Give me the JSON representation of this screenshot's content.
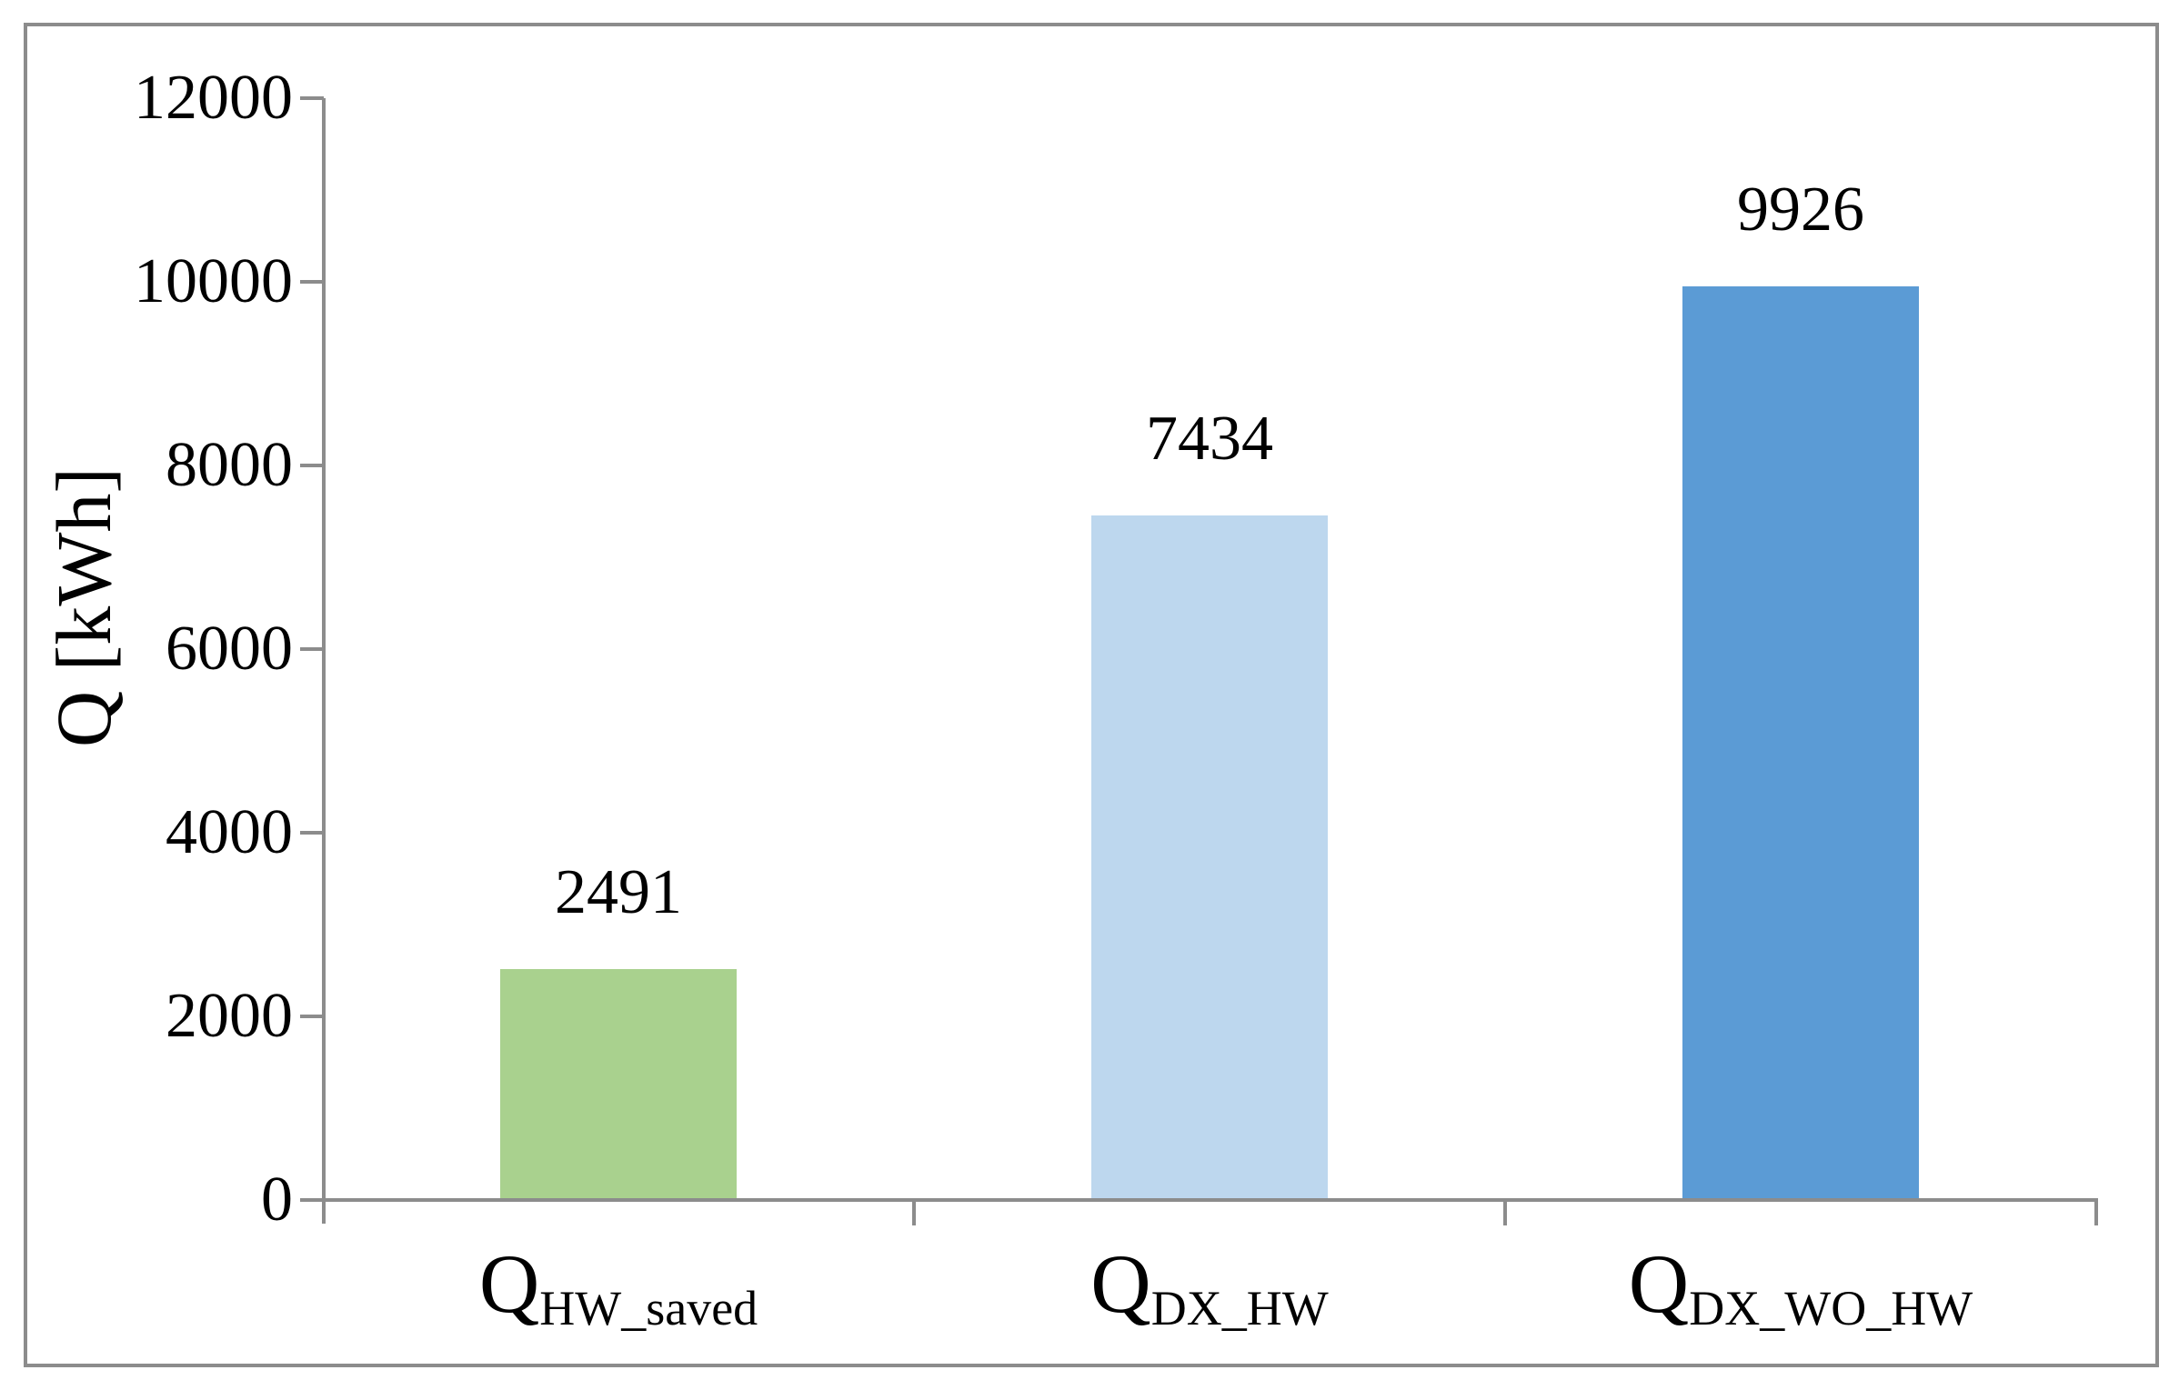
{
  "chart_data": {
    "type": "bar",
    "title": "",
    "xlabel": "",
    "ylabel": "Q [kWh]",
    "ylim": [
      0,
      12000
    ],
    "ytick_interval": 2000,
    "yticks": [
      0,
      2000,
      4000,
      6000,
      8000,
      10000,
      12000
    ],
    "categories": [
      {
        "base": "Q",
        "sub": "HW_saved"
      },
      {
        "base": "Q",
        "sub": "DX_HW"
      },
      {
        "base": "Q",
        "sub": "DX_WO_HW"
      }
    ],
    "values": [
      2491,
      7434,
      9926
    ],
    "data_labels": [
      "2491",
      "7434",
      "9926"
    ],
    "bar_colors": [
      "#a9d18e",
      "#bdd7ee",
      "#5b9bd5"
    ],
    "grid": false,
    "legend_position": "none"
  },
  "colors": {
    "axis": "#8c8c8c",
    "frame_border": "#8c8c8c",
    "text": "#000000",
    "background": "#ffffff"
  }
}
